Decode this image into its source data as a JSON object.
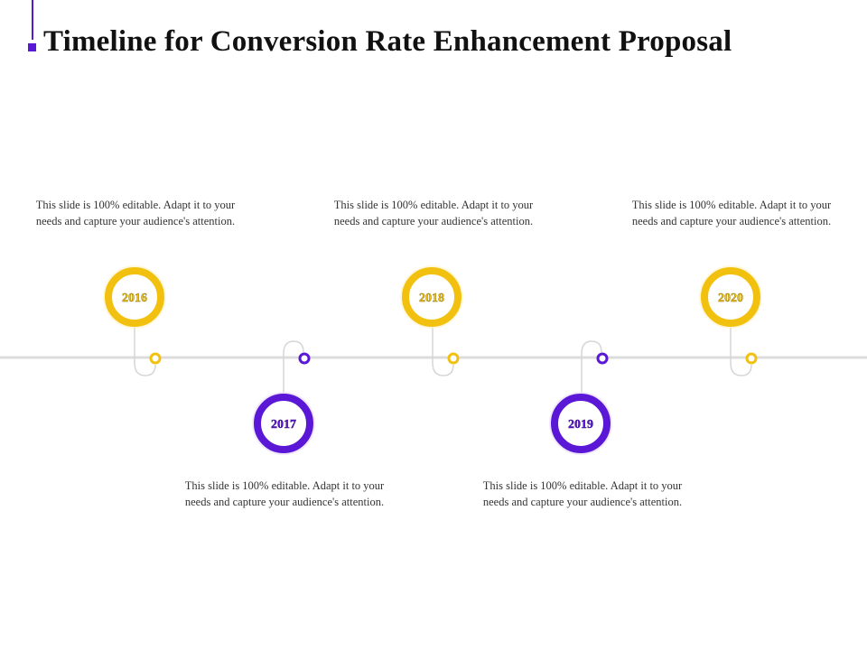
{
  "title": "Timeline for Conversion Rate Enhancement Proposal",
  "colors": {
    "accent": "#5b17d6",
    "yellow": "#f2c10f",
    "purple": "#5b17d6",
    "line": "#dcdcdc"
  },
  "milestones": [
    {
      "year": "2016",
      "text": "This slide is 100% editable. Adapt it to your needs and capture your audience's attention."
    },
    {
      "year": "2017",
      "text": "This slide is 100% editable. Adapt it to your needs and capture your audience's attention."
    },
    {
      "year": "2018",
      "text": "This slide is 100% editable. Adapt it to your needs and capture your audience's attention."
    },
    {
      "year": "2019",
      "text": "This slide is 100% editable. Adapt it to your needs and capture your audience's attention."
    },
    {
      "year": "2020",
      "text": "This slide is 100% editable. Adapt it to your needs and capture your audience's attention."
    }
  ]
}
